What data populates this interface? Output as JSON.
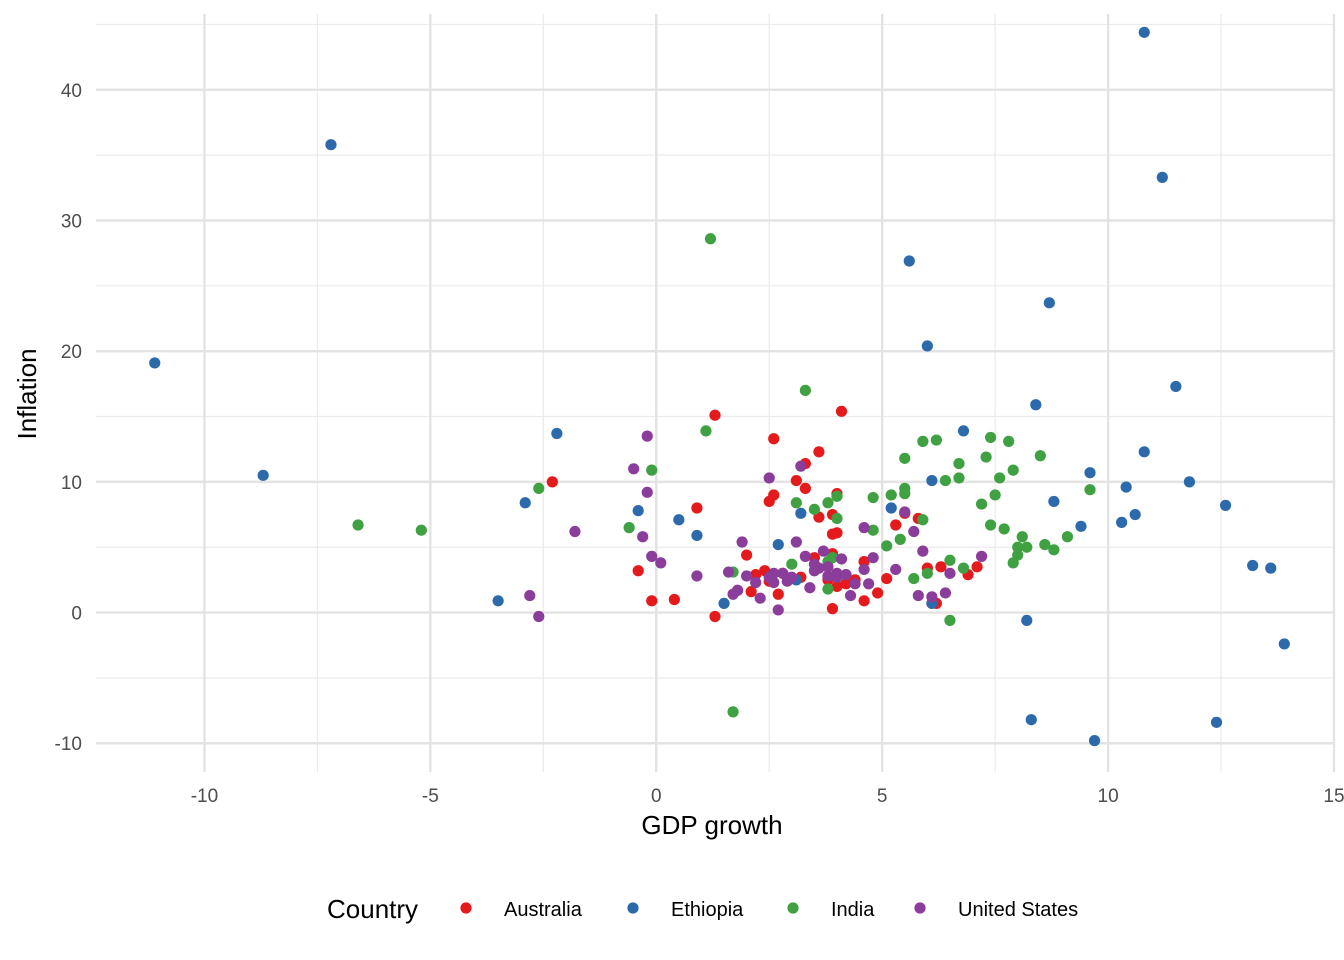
{
  "chart_data": {
    "type": "scatter",
    "xlabel": "GDP growth",
    "ylabel": "Inflation",
    "xlim": [
      -12.4,
      15.0
    ],
    "ylim": [
      -12.2,
      45.8
    ],
    "x_ticks": [
      -10,
      -5,
      0,
      5,
      10,
      15
    ],
    "x_tick_labels": [
      "-10",
      "-5",
      "0",
      "5",
      "10",
      "15"
    ],
    "y_ticks": [
      -10,
      0,
      10,
      20,
      30,
      40
    ],
    "y_tick_labels": [
      "-10",
      "0",
      "10",
      "20",
      "30",
      "40"
    ],
    "grid": true,
    "legend": {
      "title": "Country",
      "position": "bottom"
    },
    "series": [
      {
        "name": "Australia",
        "color": "#e41a1c",
        "points": [
          [
            -2.3,
            10.0
          ],
          [
            -0.4,
            3.2
          ],
          [
            -0.1,
            0.9
          ],
          [
            0.4,
            1.0
          ],
          [
            0.9,
            8.0
          ],
          [
            1.3,
            15.1
          ],
          [
            1.3,
            -0.3
          ],
          [
            1.8,
            1.7
          ],
          [
            2.0,
            4.4
          ],
          [
            2.1,
            1.6
          ],
          [
            2.2,
            2.9
          ],
          [
            2.4,
            3.2
          ],
          [
            2.5,
            2.4
          ],
          [
            2.5,
            8.5
          ],
          [
            2.6,
            9.0
          ],
          [
            2.6,
            13.3
          ],
          [
            2.7,
            1.4
          ],
          [
            2.8,
            3.0
          ],
          [
            3.0,
            2.6
          ],
          [
            3.1,
            10.1
          ],
          [
            3.2,
            2.7
          ],
          [
            3.3,
            11.4
          ],
          [
            3.3,
            9.5
          ],
          [
            3.5,
            4.2
          ],
          [
            3.6,
            7.3
          ],
          [
            3.6,
            12.3
          ],
          [
            3.8,
            2.5
          ],
          [
            3.9,
            4.5
          ],
          [
            3.9,
            7.5
          ],
          [
            3.9,
            6.0
          ],
          [
            3.9,
            0.3
          ],
          [
            4.0,
            2.0
          ],
          [
            4.0,
            9.1
          ],
          [
            4.0,
            6.1
          ],
          [
            4.1,
            15.4
          ],
          [
            4.2,
            2.2
          ],
          [
            4.4,
            2.5
          ],
          [
            4.6,
            3.9
          ],
          [
            4.6,
            0.9
          ],
          [
            4.9,
            1.5
          ],
          [
            5.1,
            2.6
          ],
          [
            5.3,
            6.7
          ],
          [
            5.5,
            7.6
          ],
          [
            5.8,
            7.2
          ],
          [
            6.0,
            3.4
          ],
          [
            6.2,
            0.7
          ],
          [
            6.3,
            3.5
          ],
          [
            6.9,
            2.9
          ],
          [
            7.1,
            3.5
          ]
        ]
      },
      {
        "name": "Ethiopia",
        "color": "#2c6aac",
        "points": [
          [
            -11.1,
            19.1
          ],
          [
            -8.7,
            10.5
          ],
          [
            -7.2,
            35.8
          ],
          [
            -3.5,
            0.9
          ],
          [
            -2.9,
            8.4
          ],
          [
            -2.2,
            13.7
          ],
          [
            -0.4,
            7.8
          ],
          [
            0.5,
            7.1
          ],
          [
            0.9,
            5.9
          ],
          [
            1.5,
            0.7
          ],
          [
            2.7,
            5.2
          ],
          [
            3.1,
            2.5
          ],
          [
            3.2,
            7.6
          ],
          [
            5.2,
            8.0
          ],
          [
            5.6,
            26.9
          ],
          [
            6.0,
            20.4
          ],
          [
            6.1,
            0.7
          ],
          [
            6.1,
            10.1
          ],
          [
            6.8,
            13.9
          ],
          [
            8.2,
            -0.6
          ],
          [
            8.3,
            -8.2
          ],
          [
            8.4,
            15.9
          ],
          [
            8.7,
            23.7
          ],
          [
            8.8,
            8.5
          ],
          [
            9.4,
            6.6
          ],
          [
            9.6,
            10.7
          ],
          [
            9.7,
            -9.8
          ],
          [
            10.3,
            6.9
          ],
          [
            10.4,
            9.6
          ],
          [
            10.6,
            7.5
          ],
          [
            10.8,
            44.4
          ],
          [
            10.8,
            12.3
          ],
          [
            11.2,
            33.3
          ],
          [
            11.5,
            17.3
          ],
          [
            11.8,
            10.0
          ],
          [
            12.4,
            -8.4
          ],
          [
            12.6,
            8.2
          ],
          [
            13.2,
            3.6
          ],
          [
            13.6,
            3.4
          ],
          [
            13.9,
            -2.4
          ]
        ]
      },
      {
        "name": "India",
        "color": "#3fa142",
        "points": [
          [
            -6.6,
            6.7
          ],
          [
            -5.2,
            6.3
          ],
          [
            -2.6,
            9.5
          ],
          [
            -0.6,
            6.5
          ],
          [
            -0.1,
            10.9
          ],
          [
            1.1,
            13.9
          ],
          [
            1.2,
            28.6
          ],
          [
            1.7,
            -7.6
          ],
          [
            1.7,
            3.1
          ],
          [
            3.0,
            3.7
          ],
          [
            3.1,
            8.4
          ],
          [
            3.3,
            17.0
          ],
          [
            3.5,
            7.9
          ],
          [
            3.8,
            1.8
          ],
          [
            3.8,
            3.9
          ],
          [
            3.8,
            8.4
          ],
          [
            3.9,
            4.2
          ],
          [
            4.0,
            8.9
          ],
          [
            4.0,
            7.2
          ],
          [
            4.8,
            8.8
          ],
          [
            4.8,
            6.3
          ],
          [
            5.1,
            5.1
          ],
          [
            5.2,
            9.0
          ],
          [
            5.4,
            5.6
          ],
          [
            5.5,
            11.8
          ],
          [
            5.5,
            9.5
          ],
          [
            5.5,
            9.1
          ],
          [
            5.7,
            2.6
          ],
          [
            5.9,
            7.1
          ],
          [
            5.9,
            13.1
          ],
          [
            6.0,
            3.0
          ],
          [
            6.2,
            13.2
          ],
          [
            6.4,
            10.1
          ],
          [
            6.5,
            4.0
          ],
          [
            6.5,
            -0.6
          ],
          [
            6.7,
            10.3
          ],
          [
            6.7,
            11.4
          ],
          [
            6.8,
            3.4
          ],
          [
            7.2,
            8.3
          ],
          [
            7.3,
            11.9
          ],
          [
            7.4,
            6.7
          ],
          [
            7.4,
            13.4
          ],
          [
            7.5,
            9.0
          ],
          [
            7.6,
            10.3
          ],
          [
            7.7,
            6.4
          ],
          [
            7.8,
            13.1
          ],
          [
            7.9,
            10.9
          ],
          [
            7.9,
            3.8
          ],
          [
            8.0,
            4.4
          ],
          [
            8.0,
            5.0
          ],
          [
            8.1,
            5.8
          ],
          [
            8.2,
            5.0
          ],
          [
            8.5,
            12.0
          ],
          [
            8.6,
            5.2
          ],
          [
            8.8,
            4.8
          ],
          [
            9.1,
            5.8
          ],
          [
            9.6,
            9.4
          ]
        ]
      },
      {
        "name": "United States",
        "color": "#8a3d9a",
        "points": [
          [
            -2.8,
            1.3
          ],
          [
            -2.6,
            -0.3
          ],
          [
            -1.8,
            6.2
          ],
          [
            -0.5,
            11.0
          ],
          [
            -0.3,
            5.8
          ],
          [
            -0.2,
            13.5
          ],
          [
            -0.2,
            9.2
          ],
          [
            -0.1,
            4.3
          ],
          [
            0.1,
            3.8
          ],
          [
            0.9,
            2.8
          ],
          [
            1.6,
            3.1
          ],
          [
            1.7,
            1.4
          ],
          [
            1.8,
            1.7
          ],
          [
            1.9,
            5.4
          ],
          [
            2.0,
            2.8
          ],
          [
            2.2,
            2.3
          ],
          [
            2.3,
            1.1
          ],
          [
            2.5,
            2.7
          ],
          [
            2.5,
            10.3
          ],
          [
            2.6,
            3.0
          ],
          [
            2.6,
            2.3
          ],
          [
            2.7,
            0.2
          ],
          [
            2.8,
            3.0
          ],
          [
            2.9,
            2.4
          ],
          [
            3.0,
            2.7
          ],
          [
            3.1,
            5.4
          ],
          [
            3.2,
            11.2
          ],
          [
            3.3,
            4.3
          ],
          [
            3.4,
            1.9
          ],
          [
            3.5,
            3.2
          ],
          [
            3.5,
            3.7
          ],
          [
            3.6,
            3.4
          ],
          [
            3.7,
            4.7
          ],
          [
            3.8,
            2.8
          ],
          [
            3.8,
            3.5
          ],
          [
            4.0,
            3.0
          ],
          [
            4.0,
            2.7
          ],
          [
            4.1,
            4.1
          ],
          [
            4.2,
            2.9
          ],
          [
            4.3,
            1.3
          ],
          [
            4.4,
            2.2
          ],
          [
            4.6,
            6.5
          ],
          [
            4.6,
            3.3
          ],
          [
            4.7,
            2.2
          ],
          [
            4.8,
            4.2
          ],
          [
            5.3,
            3.3
          ],
          [
            5.5,
            7.7
          ],
          [
            5.7,
            6.2
          ],
          [
            5.8,
            1.3
          ],
          [
            5.9,
            4.7
          ],
          [
            6.1,
            1.2
          ],
          [
            6.4,
            1.5
          ],
          [
            6.5,
            3.0
          ],
          [
            7.2,
            4.3
          ]
        ]
      }
    ]
  }
}
